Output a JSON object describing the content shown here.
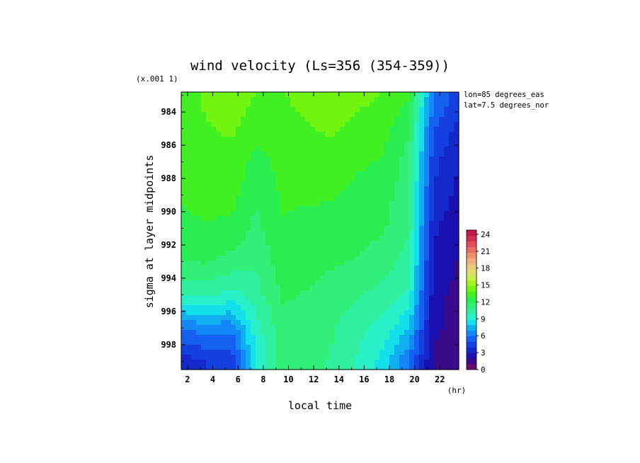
{
  "chart_data": {
    "type": "heatmap",
    "title": "wind velocity (Ls=356 (354-359))",
    "xlabel": "local time",
    "xunit": "(hr)",
    "ylabel": "sigma at layer midpoints",
    "yscale_note": "(x.001 1)",
    "annotations": [
      "lon=85 degrees_eas",
      "lat=7.5 degrees_nor"
    ],
    "xlim": [
      1.5,
      23.5
    ],
    "ylim": [
      982.8,
      999.5
    ],
    "y_inverted": true,
    "x_ticks": [
      2,
      4,
      6,
      8,
      10,
      12,
      14,
      16,
      18,
      20,
      22
    ],
    "y_ticks": [
      984,
      986,
      988,
      990,
      992,
      994,
      996,
      998
    ],
    "colorbar": {
      "ticks": [
        0,
        3,
        6,
        9,
        12,
        15,
        18,
        21,
        24
      ],
      "min": 0,
      "max": 24.75,
      "levels": [
        "#6a0a6a",
        "#3a0a8a",
        "#1a10b0",
        "#1428cc",
        "#1440e0",
        "#1460f0",
        "#1488f8",
        "#10b0f0",
        "#14e0ec",
        "#28f0c8",
        "#30f0a0",
        "#30f078",
        "#28ee50",
        "#40f020",
        "#70f410",
        "#a4f420",
        "#c8ee50",
        "#e0dc70",
        "#e8c880",
        "#ecb07c",
        "#ec9070",
        "#e87060",
        "#e05058",
        "#d03050",
        "#c01c48"
      ]
    },
    "x": [
      1.5,
      3.5,
      5.5,
      7.5,
      9.5,
      11.5,
      13.5,
      15.5,
      17.5,
      19.5,
      21.5,
      23.5
    ],
    "y": [
      983,
      985,
      987,
      989,
      991,
      993,
      995,
      997,
      999
    ],
    "z": [
      [
        13.5,
        14.0,
        14.5,
        13.8,
        13.8,
        14.2,
        14.4,
        14.2,
        13.8,
        13.0,
        6.0,
        4.5
      ],
      [
        13.5,
        13.8,
        14.0,
        13.2,
        13.5,
        13.8,
        14.0,
        13.5,
        13.2,
        12.0,
        5.0,
        3.6
      ],
      [
        13.2,
        13.5,
        13.6,
        12.5,
        13.2,
        13.4,
        13.5,
        13.0,
        12.8,
        11.5,
        4.3,
        3.0
      ],
      [
        13.0,
        13.2,
        13.2,
        12.0,
        13.0,
        13.0,
        13.0,
        12.6,
        12.3,
        11.2,
        3.8,
        2.6
      ],
      [
        12.6,
        12.8,
        12.6,
        11.6,
        12.8,
        12.6,
        12.4,
        12.2,
        12.0,
        11.0,
        3.2,
        2.2
      ],
      [
        11.8,
        12.0,
        11.5,
        11.0,
        12.5,
        12.2,
        12.0,
        11.8,
        11.4,
        10.5,
        2.8,
        1.9
      ],
      [
        10.0,
        10.2,
        9.5,
        10.5,
        12.0,
        11.8,
        11.5,
        11.0,
        10.5,
        9.8,
        2.4,
        1.6
      ],
      [
        6.0,
        6.5,
        6.3,
        9.5,
        11.6,
        11.4,
        11.0,
        10.2,
        9.5,
        8.0,
        2.2,
        1.5
      ],
      [
        3.5,
        4.0,
        4.2,
        9.0,
        11.3,
        11.2,
        10.8,
        9.8,
        8.5,
        6.0,
        1.8,
        1.2
      ]
    ]
  }
}
